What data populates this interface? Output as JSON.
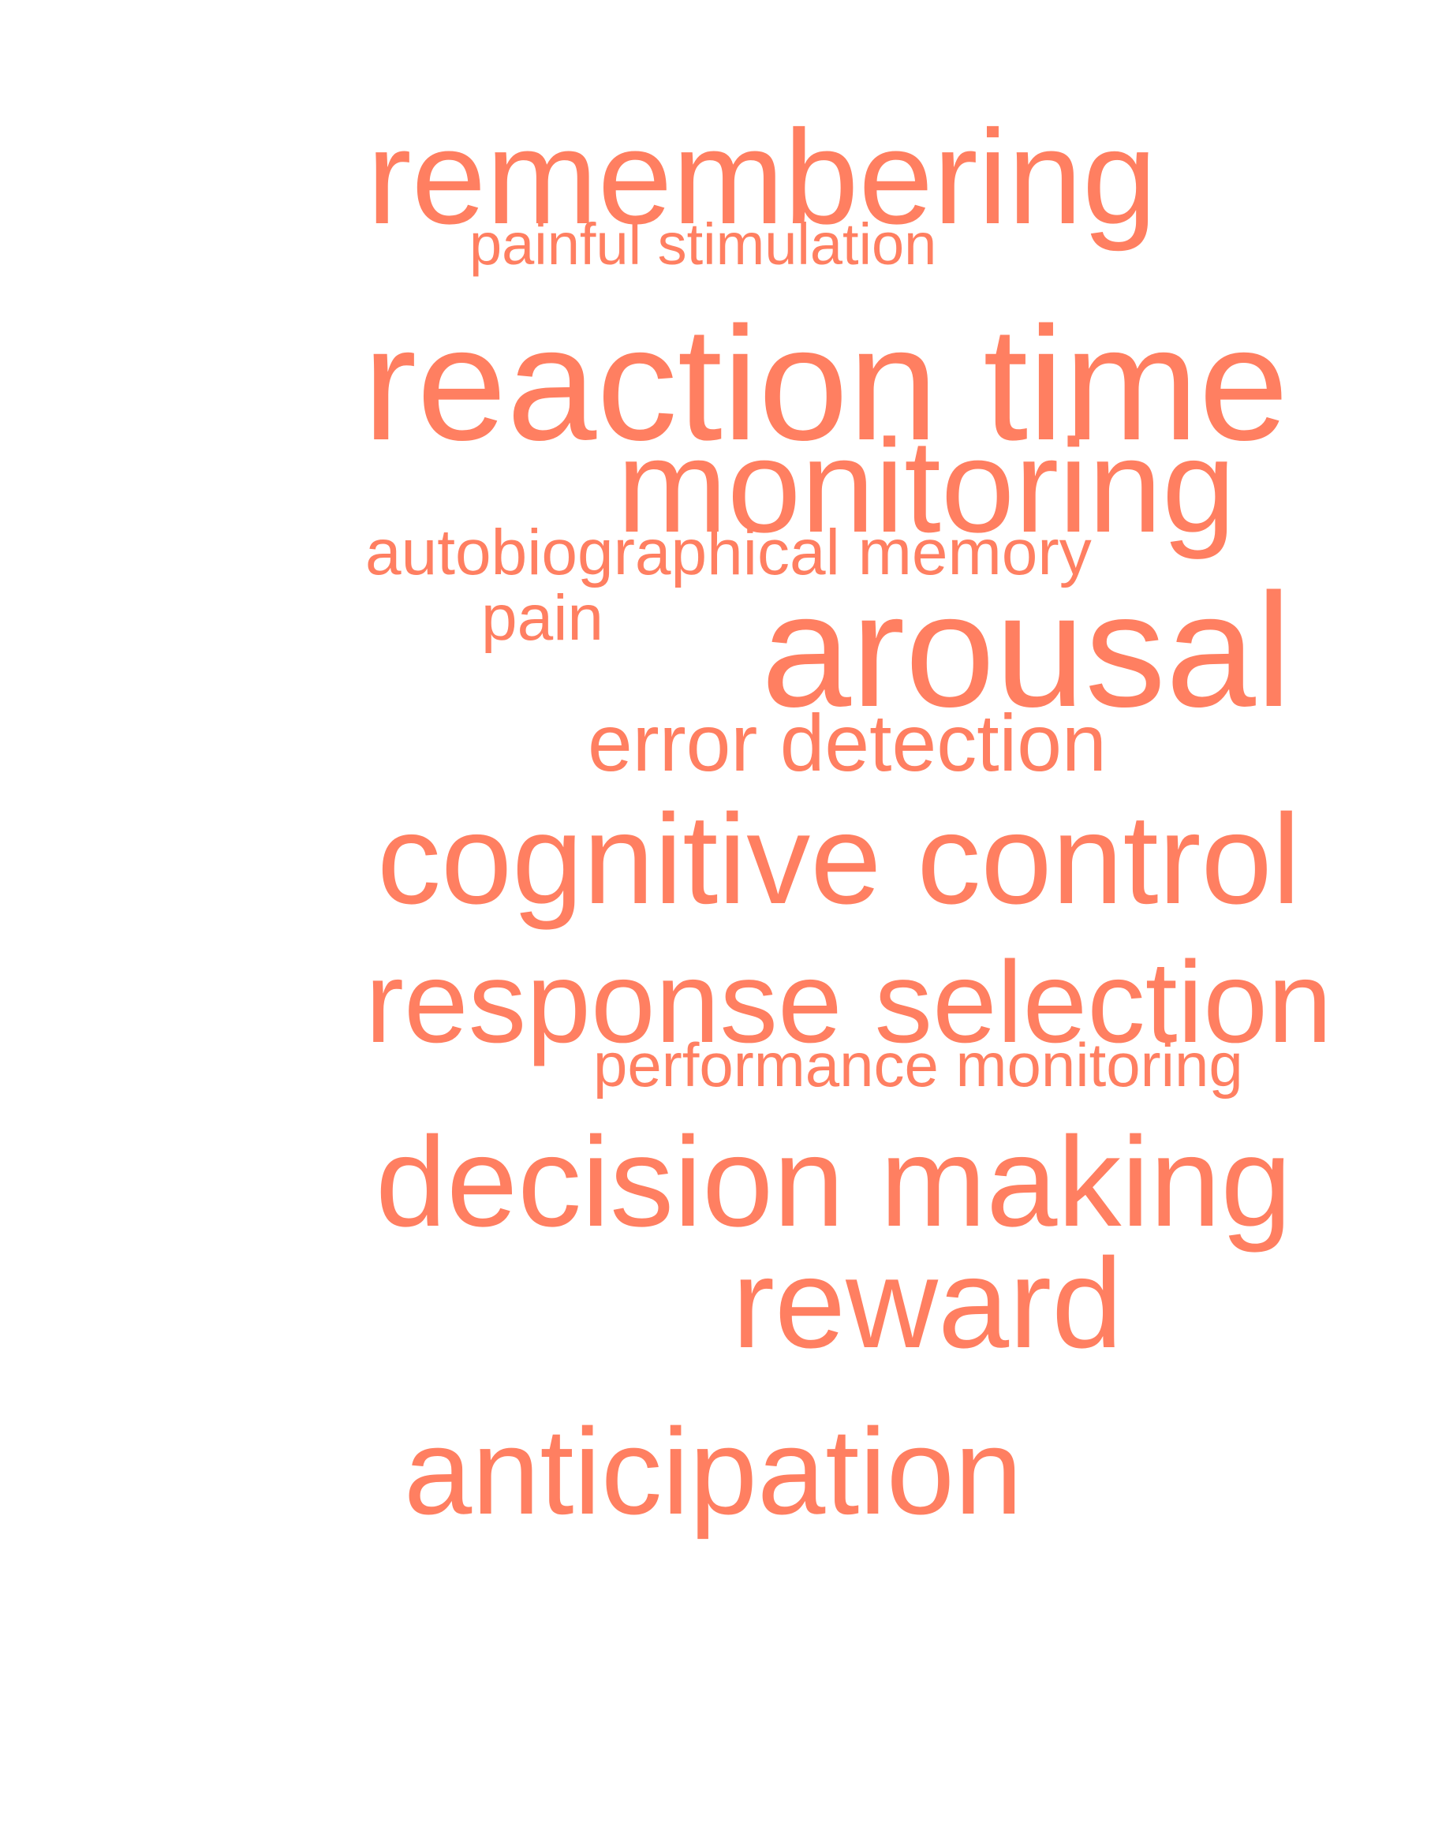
{
  "word_cloud": {
    "color": "#ff7f61",
    "words": [
      {
        "text": "remembering"
      },
      {
        "text": "painful stimulation"
      },
      {
        "text": "reaction time"
      },
      {
        "text": "monitoring"
      },
      {
        "text": "autobiographical memory"
      },
      {
        "text": "pain"
      },
      {
        "text": "arousal"
      },
      {
        "text": "error detection"
      },
      {
        "text": "cognitive control"
      },
      {
        "text": "response selection"
      },
      {
        "text": "performance monitoring"
      },
      {
        "text": "decision making"
      },
      {
        "text": "reward"
      },
      {
        "text": "anticipation"
      }
    ]
  }
}
